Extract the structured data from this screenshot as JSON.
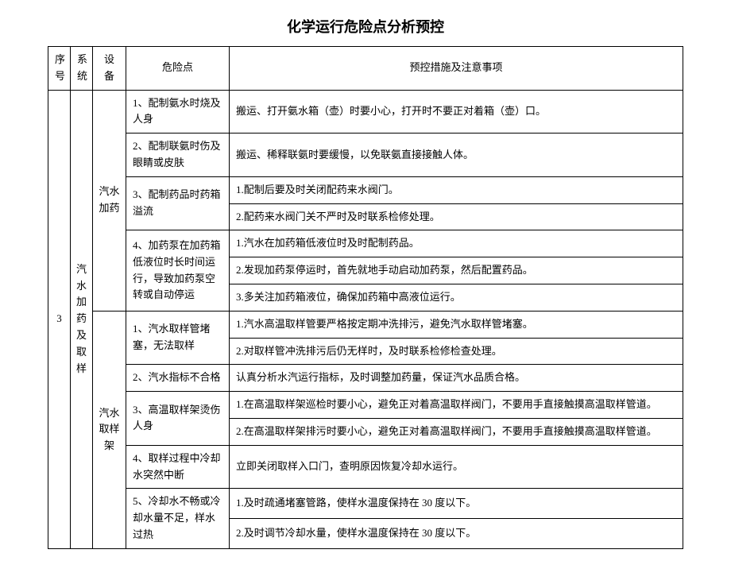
{
  "title": "化学运行危险点分析预控",
  "headers": {
    "seq": "序号",
    "sys": "系统",
    "dev": "设备",
    "risk": "危险点",
    "measure": "预控措施及注意事项"
  },
  "seq_num": "3",
  "system": "汽水加药及取样",
  "devices": {
    "d1": "汽水加药",
    "d2": "汽水取样架"
  },
  "risks": {
    "r1": "1、配制氨水时烧及人身",
    "r2": "2、配制联氨时伤及眼睛或皮肤",
    "r3": "3、配制药品时药箱溢流",
    "r4": "4、加药泵在加药箱低液位时长时间运行，导致加药泵空转或自动停运",
    "r5": "1、汽水取样管堵塞，无法取样",
    "r6": "2、汽水指标不合格",
    "r7": "3、高温取样架烫伤人身",
    "r8": "4、取样过程中冷却水突然中断",
    "r9": "5、冷却水不畅或冷却水量不足，样水过热"
  },
  "measures": {
    "m1": "搬运、打开氨水箱（壶）时要小心，打开时不要正对着箱（壶）口。",
    "m2": "搬运、稀释联氨时要缓慢，以免联氨直接接触人体。",
    "m3a": "1.配制后要及时关闭配药来水阀门。",
    "m3b": "2.配药来水阀门关不严时及时联系检修处理。",
    "m4a": "1.汽水在加药箱低液位时及时配制药品。",
    "m4b": "2.发现加药泵停运时，首先就地手动启动加药泵，然后配置药品。",
    "m4c": "3.多关注加药箱液位，确保加药箱中高液位运行。",
    "m5a": "1.汽水高温取样管要严格按定期冲洗排污，避免汽水取样管堵塞。",
    "m5b": "2.对取样管冲洗排污后仍无样时，及时联系检修检查处理。",
    "m6": "认真分析水汽运行指标，及时调整加药量，保证汽水品质合格。",
    "m7a": "1.在高温取样架巡检时要小心，避免正对着高温取样阀门，不要用手直接触摸高温取样管道。",
    "m7b": "2.在高温取样架排污时要小心，避免正对着高温取样阀门，不要用手直接触摸高温取样管道。",
    "m8": "立即关闭取样入口门，查明原因恢复冷却水运行。",
    "m9a": "1.及时疏通堵塞管路，使样水温度保持在 30 度以下。",
    "m9b": "2.及时调节冷却水量，使样水温度保持在 30 度以下。"
  }
}
